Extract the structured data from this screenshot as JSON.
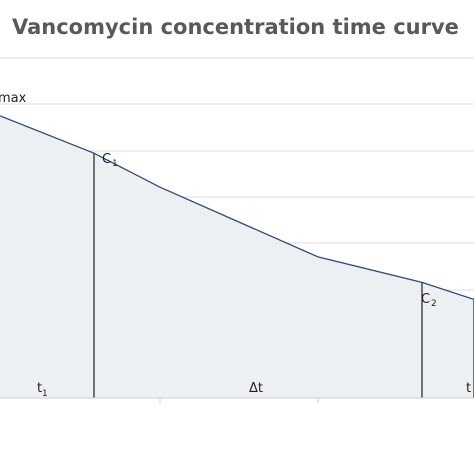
{
  "chart_data": {
    "type": "area",
    "title": "Vancomycin concentration time curve",
    "y_label_max": "max",
    "x": [
      0,
      1,
      2,
      3,
      4,
      5
    ],
    "values": [
      8.3,
      7.2,
      6.2,
      4.15,
      3.4,
      2.9
    ],
    "ylim": [
      0,
      10
    ],
    "gridlines": true,
    "colors": {
      "line": "#2f4a7a",
      "fill": "#edf0f2",
      "grid": "#dcdcdc",
      "marker": "#222222",
      "axis": "#cfcfcf"
    },
    "markers": [
      {
        "x": 0.0,
        "label": "C",
        "sub": "1"
      },
      {
        "x": 4.0,
        "label": "C",
        "sub": "2"
      },
      {
        "x": 5.0,
        "label": "",
        "sub": ""
      }
    ],
    "segment_labels": [
      {
        "text": "t",
        "sub": "1"
      },
      {
        "text": "Δt",
        "sub": ""
      },
      {
        "text": "t",
        "sub": ""
      }
    ]
  }
}
